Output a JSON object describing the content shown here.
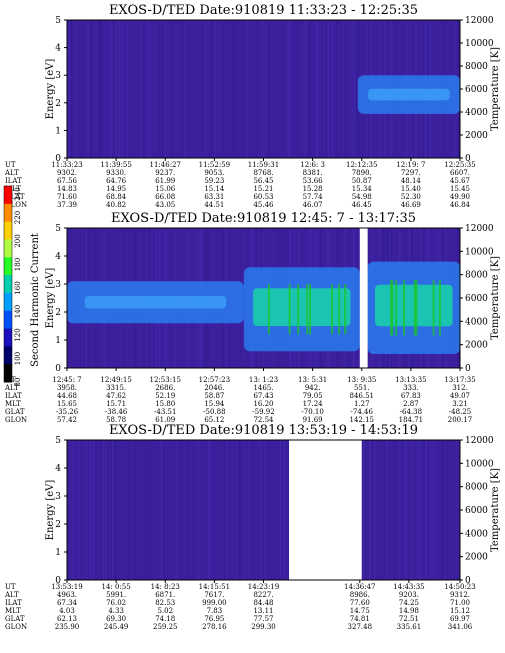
{
  "colors": {
    "background": "#3b1f9c",
    "low": "#3a26a6",
    "mid": "#2b7bf0",
    "high": "#16e0a0",
    "peak": "#19c719"
  },
  "colorbar": {
    "label": "Second Harmonic Current",
    "ticks": [
      "240",
      "220",
      "200",
      "180",
      "160",
      "140",
      "120",
      "100",
      "80"
    ],
    "colors": [
      "#ff0000",
      "#ff8c00",
      "#ffd000",
      "#b0ff40",
      "#26ff26",
      "#00d0b0",
      "#00a0ff",
      "#0050ff",
      "#1a10c0",
      "#00006a",
      "#000000"
    ]
  },
  "chart_data": [
    {
      "type": "heatmap",
      "title": "EXOS-D/TED   Date:910819  11:33:23 - 12:25:35",
      "ylabel": "Energy [eV]",
      "y2label": "Temperature [K]",
      "ylim": [
        0,
        5
      ],
      "y2lim": [
        0,
        12000
      ],
      "yticks": [
        "0",
        "1",
        "2",
        "3",
        "4",
        "5"
      ],
      "y2ticks": [
        "0",
        "2000",
        "4000",
        "6000",
        "8000",
        "10000",
        "12000"
      ],
      "gaps": [],
      "bands": [
        {
          "x0": 0.74,
          "x1": 1.0,
          "y0": 1.6,
          "y1": 3.0,
          "level": "mid"
        }
      ],
      "table": {
        "labels": [
          "UT",
          "ALT",
          "ILAT",
          "MLT",
          "GLAT",
          "GLON"
        ],
        "columns": [
          [
            "11:33:23",
            "9302.",
            "67.56",
            "14.83",
            "71.60",
            "37.39"
          ],
          [
            "11:39:55",
            "9330.",
            "64.76",
            "14.95",
            "68.84",
            "40.82"
          ],
          [
            "11:46:27",
            "9237.",
            "61.99",
            "15.06",
            "66.08",
            "43.05"
          ],
          [
            "11:52:59",
            "9053.",
            "59.23",
            "15.14",
            "63.31",
            "44.51"
          ],
          [
            "11:59:31",
            "8768.",
            "56.45",
            "15.21",
            "60.53",
            "45.46"
          ],
          [
            "12:6: 3",
            "8381.",
            "53.66",
            "15.28",
            "57.74",
            "46.07"
          ],
          [
            "12:12:35",
            "7890.",
            "50.87",
            "15.34",
            "54.98",
            "46.45"
          ],
          [
            "12:19: 7",
            "7297.",
            "48.14",
            "15.40",
            "52.30",
            "46.69"
          ],
          [
            "12:25:35",
            "6607.",
            "45.67",
            "15.45",
            "49.90",
            "46.84"
          ]
        ]
      }
    },
    {
      "type": "heatmap",
      "title": "EXOS-D/TED   Date:910819  12:45: 7 - 13:17:35",
      "ylabel": "Energy [eV]",
      "y2label": "Temperature [K]",
      "ylim": [
        0,
        5
      ],
      "y2lim": [
        0,
        12000
      ],
      "yticks": [
        "0",
        "1",
        "2",
        "3",
        "4",
        "5"
      ],
      "y2ticks": [
        "0",
        "2000",
        "4000",
        "6000",
        "8000",
        "10000",
        "12000"
      ],
      "gaps": [
        {
          "x0": 0.745,
          "x1": 0.765
        }
      ],
      "bands": [
        {
          "x0": 0.0,
          "x1": 0.45,
          "y0": 1.6,
          "y1": 3.1,
          "level": "mid"
        },
        {
          "x0": 0.45,
          "x1": 0.745,
          "y0": 0.6,
          "y1": 3.6,
          "level": "high"
        },
        {
          "x0": 0.765,
          "x1": 1.0,
          "y0": 0.5,
          "y1": 3.8,
          "level": "high"
        }
      ],
      "table": {
        "labels": [
          "UT",
          "ALT",
          "ILAT",
          "MLT",
          "GLAT",
          "GLON"
        ],
        "columns": [
          [
            "12:45: 7",
            "3958.",
            "44.68",
            "15.65",
            "-35.26",
            "57.42"
          ],
          [
            "12:49:15",
            "3315.",
            "47.62",
            "15.71",
            "-38.46",
            "58.78"
          ],
          [
            "12:53:15",
            "2686.",
            "52.19",
            "15.80",
            "-43.51",
            "61.09"
          ],
          [
            "12:57:23",
            "2046.",
            "58.87",
            "15.94",
            "-50.88",
            "65.12"
          ],
          [
            "13: 1:23",
            "1465.",
            "67.43",
            "16.20",
            "-59.92",
            "72.54"
          ],
          [
            "13: 5:31",
            "942.",
            "79.05",
            "17.24",
            "-70.10",
            "91.69"
          ],
          [
            "13: 9:35",
            "551.",
            "846.51",
            "1.27",
            "-74.46",
            "142.15"
          ],
          [
            "13:13:35",
            "333.",
            "67.83",
            "2.87",
            "-64.38",
            "184.71"
          ],
          [
            "13:17:35",
            "312.",
            "49.07",
            "3.21",
            "-48.25",
            "200.17"
          ]
        ]
      }
    },
    {
      "type": "heatmap",
      "title": "EXOS-D/TED   Date:910819  13:53:19 - 14:53:19",
      "ylabel": "Energy [eV]",
      "y2label": "Temperature [K]",
      "ylim": [
        0,
        5
      ],
      "y2lim": [
        0,
        12000
      ],
      "yticks": [
        "0",
        "1",
        "2",
        "3",
        "4",
        "5"
      ],
      "y2ticks": [
        "0",
        "2000",
        "4000",
        "6000",
        "8000",
        "10000",
        "12000"
      ],
      "gaps": [
        {
          "x0": 0.565,
          "x1": 0.75
        }
      ],
      "bands": [],
      "table": {
        "labels": [
          "UT",
          "ALT",
          "ILAT",
          "MLT",
          "GLAT",
          "GLON"
        ],
        "columns": [
          [
            "13:53:19",
            "4963.",
            "67.34",
            "4.03",
            "62.13",
            "235.90"
          ],
          [
            "14: 0:55",
            "5991.",
            "76.02",
            "4.33",
            "69.30",
            "245.49"
          ],
          [
            "14: 8:23",
            "6871.",
            "82.53",
            "5.02",
            "74.18",
            "259.25"
          ],
          [
            "14:15:51",
            "7617.",
            "999.00",
            "7.83",
            "76.95",
            "278.16"
          ],
          [
            "14:23:19",
            "8227.",
            "84.48",
            "13.11",
            "77.57",
            "299.30"
          ],
          [
            "14:36:47",
            "8986.",
            "77.60",
            "14.75",
            "74.81",
            "327.48"
          ],
          [
            "14:43:35",
            "9203.",
            "74.25",
            "14.98",
            "72.51",
            "335.61"
          ],
          [
            "14:50:23",
            "9312.",
            "71.00",
            "15.12",
            "69.97",
            "341.06"
          ]
        ]
      }
    }
  ]
}
